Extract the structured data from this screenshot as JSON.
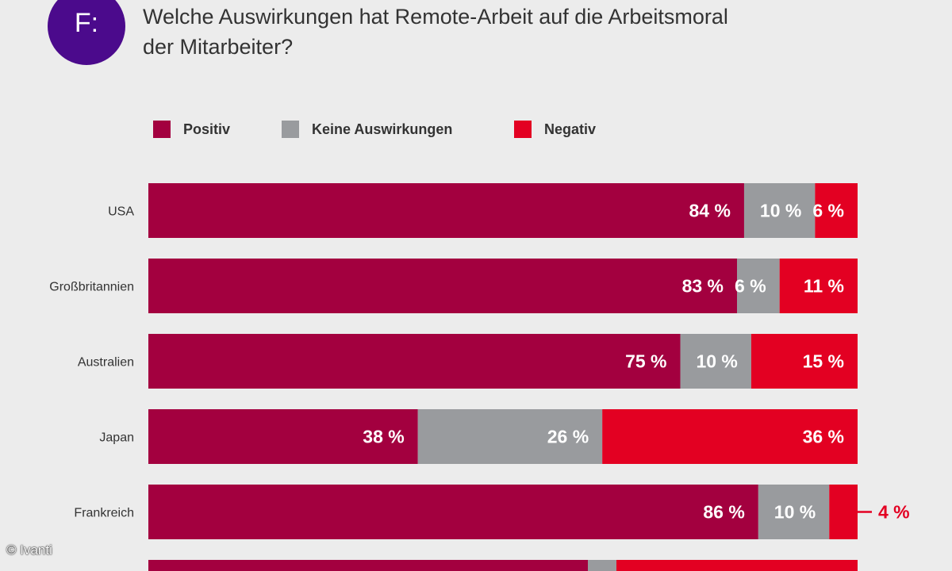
{
  "badge": "F:",
  "question": "Welche Auswirkungen hat Remote-Arbeit auf die Arbeitsmoral der Mitarbeiter?",
  "copyright": "© Ivanti",
  "colors": {
    "positiv": "#a3003f",
    "keine": "#999b9e",
    "negativ": "#e30022",
    "background": "#ececec"
  },
  "chart_data": {
    "type": "bar",
    "orientation": "horizontal",
    "stacked": true,
    "percent_stacked": true,
    "categories": [
      "USA",
      "Großbritannien",
      "Australien",
      "Japan",
      "Frankreich"
    ],
    "series": [
      {
        "name": "Positiv",
        "values": [
          84,
          83,
          75,
          38,
          86
        ],
        "labels": [
          "84 %",
          "83 %",
          "75 %",
          "38 %",
          "86 %"
        ]
      },
      {
        "name": "Keine Auswirkungen",
        "values": [
          10,
          6,
          10,
          26,
          10
        ],
        "labels": [
          "10 %",
          "6 %",
          "10 %",
          "26 %",
          "10 %"
        ]
      },
      {
        "name": "Negativ",
        "values": [
          6,
          11,
          15,
          36,
          4
        ],
        "labels": [
          "6 %",
          "11 %",
          "15 %",
          "36 %",
          "4 %"
        ]
      }
    ],
    "legend": "top-left"
  }
}
